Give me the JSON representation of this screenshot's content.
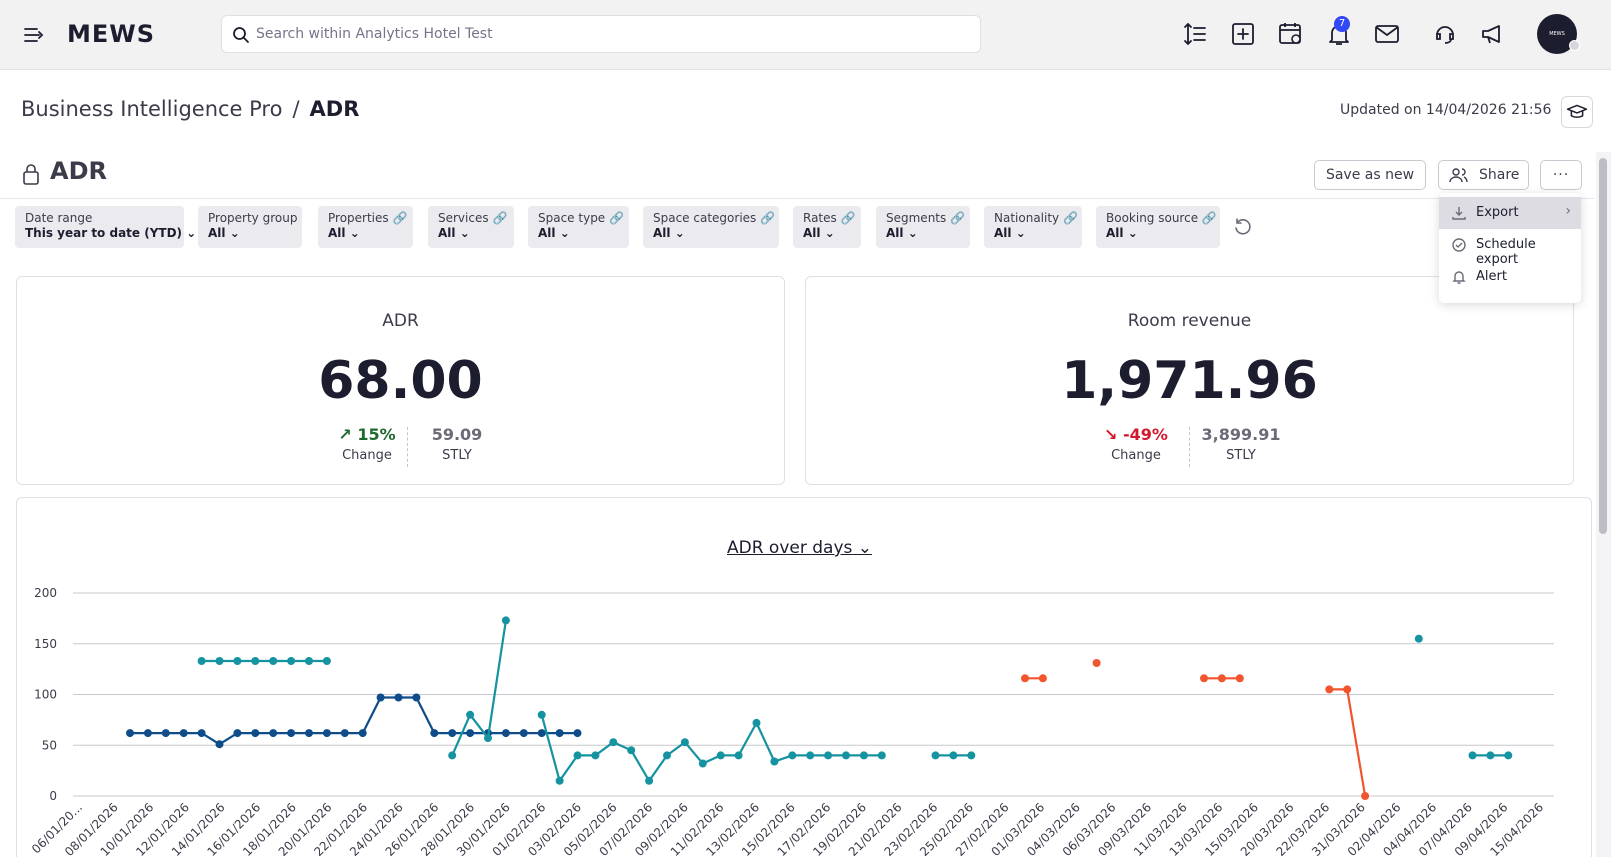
{
  "topbar": {
    "logo": "MEWS",
    "search_placeholder": "Search within Analytics Hotel Test",
    "notification_count": "7",
    "avatar_text": "MEWS"
  },
  "header": {
    "breadcrumb_root": "Business Intelligence Pro",
    "breadcrumb_sep": "/",
    "breadcrumb_current": "ADR",
    "updated": "Updated on 14/04/2026 21:56"
  },
  "report": {
    "title": "ADR",
    "save_as_new": "Save as new",
    "share": "Share",
    "more": "···"
  },
  "filters": [
    {
      "label": "Date range",
      "value": "This year to date (YTD)",
      "linked": false
    },
    {
      "label": "Property group",
      "value": "All",
      "linked": false
    },
    {
      "label": "Properties",
      "value": "All",
      "linked": true
    },
    {
      "label": "Services",
      "value": "All",
      "linked": true
    },
    {
      "label": "Space type",
      "value": "All",
      "linked": true
    },
    {
      "label": "Space categories",
      "value": "All",
      "linked": true
    },
    {
      "label": "Rates",
      "value": "All",
      "linked": true
    },
    {
      "label": "Segments",
      "value": "All",
      "linked": true
    },
    {
      "label": "Nationality",
      "value": "All",
      "linked": true
    },
    {
      "label": "Booking source",
      "value": "All",
      "linked": true
    }
  ],
  "kpis": [
    {
      "title": "ADR",
      "value": "68.00",
      "change": "15%",
      "change_label": "Change",
      "stly": "59.09",
      "stly_label": "STLY",
      "direction": "up",
      "color": "#1f6a2e"
    },
    {
      "title": "Room revenue",
      "value": "1,971.96",
      "change": "-49%",
      "change_label": "Change",
      "stly": "3,899.91",
      "stly_label": "STLY",
      "direction": "down",
      "color": "#d3182c"
    }
  ],
  "dropdown": {
    "items": [
      {
        "label": "Export",
        "icon": "download-icon"
      },
      {
        "label": "Schedule export",
        "icon": "clock-icon"
      },
      {
        "label": "Alert",
        "icon": "bell-icon"
      }
    ]
  },
  "chart_title": "ADR over days",
  "chart_data": {
    "type": "line",
    "title": "ADR over days",
    "ylim": [
      0,
      200
    ],
    "yticks": [
      0,
      50,
      100,
      150,
      200
    ],
    "grid": true,
    "xtick_labels": [
      "06/01/20...",
      "08/01/2026",
      "10/01/2026",
      "12/01/2026",
      "14/01/2026",
      "16/01/2026",
      "18/01/2026",
      "20/01/2026",
      "22/01/2026",
      "24/01/2026",
      "26/01/2026",
      "28/01/2026",
      "30/01/2026",
      "01/02/2026",
      "03/02/2026",
      "05/02/2026",
      "07/02/2026",
      "09/02/2026",
      "11/02/2026",
      "13/02/2026",
      "15/02/2026",
      "17/02/2026",
      "19/02/2026",
      "21/02/2026",
      "23/02/2026",
      "25/02/2026",
      "27/02/2026",
      "01/03/2026",
      "04/03/2026",
      "06/03/2026",
      "09/03/2026",
      "11/03/2026",
      "13/03/2026",
      "15/03/2026",
      "20/03/2026",
      "22/03/2026",
      "31/03/2026",
      "02/04/2026",
      "04/04/2026",
      "07/04/2026",
      "09/04/2026",
      "15/04/2026"
    ],
    "series": [
      {
        "color": "#0e4c8a",
        "segments": [
          [
            [
              4,
              62
            ],
            [
              5,
              62
            ],
            [
              6,
              62
            ],
            [
              7,
              62
            ],
            [
              8,
              62
            ],
            [
              9,
              51
            ],
            [
              10,
              62
            ],
            [
              11,
              62
            ],
            [
              12,
              62
            ],
            [
              13,
              62
            ],
            [
              14,
              62
            ],
            [
              15,
              62
            ],
            [
              16,
              62
            ],
            [
              17,
              62
            ],
            [
              18,
              97
            ],
            [
              19,
              97
            ],
            [
              20,
              97
            ],
            [
              21,
              62
            ],
            [
              22,
              62
            ],
            [
              23,
              62
            ],
            [
              24,
              62
            ],
            [
              25,
              62
            ],
            [
              26,
              62
            ],
            [
              27,
              62
            ],
            [
              28,
              62
            ],
            [
              29,
              62
            ]
          ]
        ]
      },
      {
        "color": "#1593a0",
        "segments": [
          [
            [
              8,
              133
            ],
            [
              9,
              133
            ],
            [
              10,
              133
            ],
            [
              11,
              133
            ],
            [
              12,
              133
            ],
            [
              13,
              133
            ],
            [
              14,
              133
            ],
            [
              15,
              133
            ]
          ],
          [
            [
              22,
              40
            ],
            [
              23,
              80
            ],
            [
              24,
              57
            ],
            [
              25,
              173
            ]
          ],
          [
            [
              27,
              80
            ],
            [
              28,
              15
            ],
            [
              29,
              40
            ],
            [
              30,
              40
            ],
            [
              31,
              53
            ],
            [
              32,
              45
            ],
            [
              33,
              15
            ],
            [
              34,
              40
            ],
            [
              35,
              53
            ],
            [
              36,
              32
            ],
            [
              37,
              40
            ],
            [
              38,
              40
            ],
            [
              39,
              72
            ],
            [
              40,
              34
            ],
            [
              41,
              40
            ],
            [
              42,
              40
            ],
            [
              43,
              40
            ],
            [
              44,
              40
            ],
            [
              45,
              40
            ],
            [
              46,
              40
            ]
          ],
          [
            [
              49,
              40
            ],
            [
              50,
              40
            ],
            [
              51,
              40
            ]
          ],
          [
            [
              76,
              155
            ]
          ],
          [
            [
              79,
              40
            ],
            [
              80,
              40
            ],
            [
              81,
              40
            ]
          ]
        ]
      },
      {
        "color": "#f2542d",
        "segments": [
          [
            [
              54,
              116
            ],
            [
              55,
              116
            ]
          ],
          [
            [
              58,
              131
            ]
          ],
          [
            [
              64,
              116
            ],
            [
              65,
              116
            ],
            [
              66,
              116
            ]
          ],
          [
            [
              71,
              105
            ],
            [
              72,
              105
            ],
            [
              73,
              0
            ]
          ]
        ]
      }
    ]
  }
}
